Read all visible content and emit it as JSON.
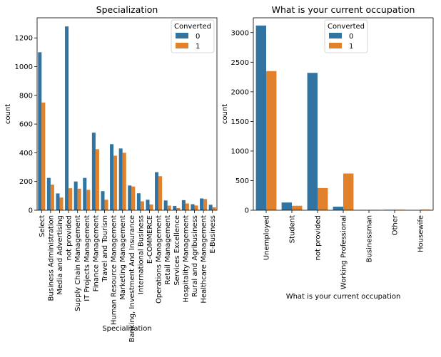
{
  "chart_data": [
    {
      "type": "bar",
      "title": "Specialization",
      "xlabel": "Specialization",
      "ylabel": "count",
      "ylim": [
        0,
        1340
      ],
      "yticks": [
        0,
        200,
        400,
        600,
        800,
        1000,
        1200
      ],
      "legend": {
        "title": "Converted",
        "position": "top-right"
      },
      "categories": [
        "Select",
        "Business Administration",
        "Media and Advertising",
        "not provided",
        "Supply Chain Management",
        "IT Projects Management",
        "Finance Management",
        "Travel and Tourism",
        "Human Resource Management",
        "Marketing Management",
        "Banking, Investment And Insurance",
        "International Business",
        "E-COMMERCE",
        "Operations Management",
        "Retail Management",
        "Services Excellence",
        "Hospitality Management",
        "Rural and Agribusiness",
        "Healthcare Management",
        "E-Business"
      ],
      "series": [
        {
          "name": "0",
          "color": "#3274a1",
          "values": [
            1100,
            225,
            117,
            1280,
            200,
            225,
            540,
            133,
            460,
            430,
            172,
            118,
            73,
            265,
            68,
            30,
            70,
            42,
            82,
            38
          ]
        },
        {
          "name": "1",
          "color": "#e1812c",
          "values": [
            750,
            178,
            88,
            153,
            150,
            142,
            425,
            73,
            380,
            400,
            165,
            62,
            40,
            237,
            32,
            15,
            47,
            33,
            78,
            20
          ]
        }
      ]
    },
    {
      "type": "bar",
      "title": "What is your current occupation",
      "xlabel": "What is your current occupation",
      "ylabel": "count",
      "ylim": [
        0,
        3250
      ],
      "yticks": [
        0,
        500,
        1000,
        1500,
        2000,
        2500,
        3000
      ],
      "legend": {
        "title": "Converted",
        "position": "top-center"
      },
      "categories": [
        "Unemployed",
        "Student",
        "not provided",
        "Working Professional",
        "Businessman",
        "Other",
        "Housewife"
      ],
      "series": [
        {
          "name": "0",
          "color": "#3274a1",
          "values": [
            3120,
            130,
            2320,
            60,
            3,
            7,
            0
          ]
        },
        {
          "name": "1",
          "color": "#e1812c",
          "values": [
            2350,
            75,
            375,
            620,
            5,
            8,
            10
          ]
        }
      ]
    }
  ]
}
